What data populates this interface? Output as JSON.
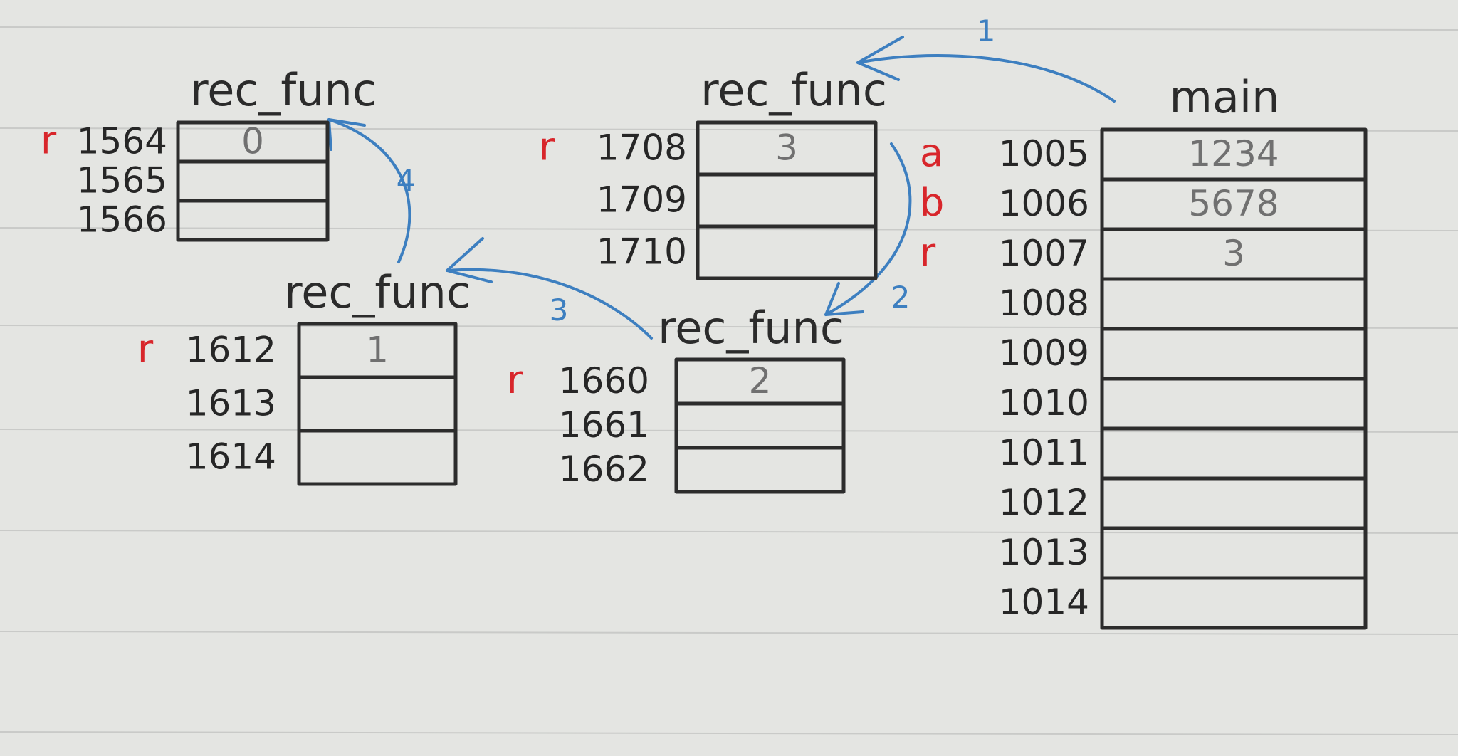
{
  "colors": {
    "paper": "#e4e5e2",
    "ruling": "#c9cac8",
    "ink": "#2c2c2c",
    "variable_label": "#d8262b",
    "value_text": "#707070",
    "arrow": "#3d7fc0"
  },
  "frames": [
    {
      "title": "main",
      "rows": [
        {
          "var": "a",
          "addr": "1005",
          "value": "1234"
        },
        {
          "var": "b",
          "addr": "1006",
          "value": "5678"
        },
        {
          "var": "r",
          "addr": "1007",
          "value": "3"
        },
        {
          "var": "",
          "addr": "1008",
          "value": ""
        },
        {
          "var": "",
          "addr": "1009",
          "value": ""
        },
        {
          "var": "",
          "addr": "1010",
          "value": ""
        },
        {
          "var": "",
          "addr": "1011",
          "value": ""
        },
        {
          "var": "",
          "addr": "1012",
          "value": ""
        },
        {
          "var": "",
          "addr": "1013",
          "value": ""
        },
        {
          "var": "",
          "addr": "1014",
          "value": ""
        }
      ]
    },
    {
      "title": "rec_func",
      "rows": [
        {
          "var": "r",
          "addr": "1708",
          "value": "3"
        },
        {
          "var": "",
          "addr": "1709",
          "value": ""
        },
        {
          "var": "",
          "addr": "1710",
          "value": ""
        }
      ]
    },
    {
      "title": "rec_func",
      "rows": [
        {
          "var": "r",
          "addr": "1660",
          "value": "2"
        },
        {
          "var": "",
          "addr": "1661",
          "value": ""
        },
        {
          "var": "",
          "addr": "1662",
          "value": ""
        }
      ]
    },
    {
      "title": "rec_func",
      "rows": [
        {
          "var": "r",
          "addr": "1612",
          "value": "1"
        },
        {
          "var": "",
          "addr": "1613",
          "value": ""
        },
        {
          "var": "",
          "addr": "1614",
          "value": ""
        }
      ]
    },
    {
      "title": "rec_func",
      "rows": [
        {
          "var": "r",
          "addr": "1564",
          "value": "0"
        },
        {
          "var": "",
          "addr": "1565",
          "value": ""
        },
        {
          "var": "",
          "addr": "1566",
          "value": ""
        }
      ]
    }
  ],
  "calls": [
    {
      "label": "1",
      "from": "main",
      "to": "rec_func 1708"
    },
    {
      "label": "2",
      "from": "rec_func 1708",
      "to": "rec_func 1660"
    },
    {
      "label": "3",
      "from": "rec_func 1660",
      "to": "rec_func 1612"
    },
    {
      "label": "4",
      "from": "rec_func 1612",
      "to": "rec_func 1564"
    }
  ]
}
